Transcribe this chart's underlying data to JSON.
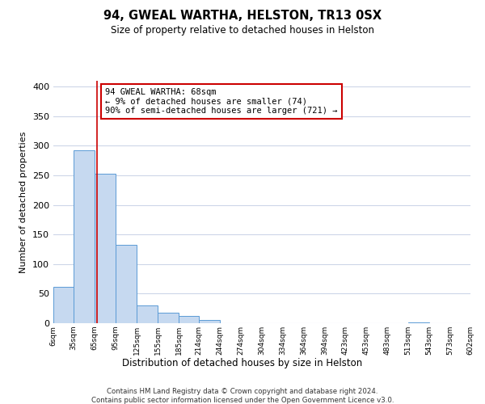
{
  "title": "94, GWEAL WARTHA, HELSTON, TR13 0SX",
  "subtitle": "Size of property relative to detached houses in Helston",
  "xlabel": "Distribution of detached houses by size in Helston",
  "ylabel": "Number of detached properties",
  "bin_edges": [
    6,
    35,
    65,
    95,
    125,
    155,
    185,
    214,
    244,
    274,
    304,
    334,
    364,
    394,
    423,
    453,
    483,
    513,
    543,
    573,
    602
  ],
  "bar_heights": [
    62,
    293,
    253,
    133,
    30,
    18,
    12,
    5,
    0,
    0,
    0,
    0,
    0,
    0,
    0,
    0,
    0,
    2,
    0,
    0
  ],
  "bar_color": "#c6d9f0",
  "bar_edge_color": "#5b9bd5",
  "vline_x": 68,
  "vline_color": "#cc0000",
  "annotation_line1": "94 GWEAL WARTHA: 68sqm",
  "annotation_line2": "← 9% of detached houses are smaller (74)",
  "annotation_line3": "90% of semi-detached houses are larger (721) →",
  "annotation_box_edge_color": "#cc0000",
  "ylim_max": 410,
  "yticks": [
    0,
    50,
    100,
    150,
    200,
    250,
    300,
    350,
    400
  ],
  "tick_labels": [
    "6sqm",
    "35sqm",
    "65sqm",
    "95sqm",
    "125sqm",
    "155sqm",
    "185sqm",
    "214sqm",
    "244sqm",
    "274sqm",
    "304sqm",
    "334sqm",
    "364sqm",
    "394sqm",
    "423sqm",
    "453sqm",
    "483sqm",
    "513sqm",
    "543sqm",
    "573sqm",
    "602sqm"
  ],
  "footnote1": "Contains HM Land Registry data © Crown copyright and database right 2024.",
  "footnote2": "Contains public sector information licensed under the Open Government Licence v3.0.",
  "background_color": "#ffffff",
  "grid_color": "#cdd6e8"
}
